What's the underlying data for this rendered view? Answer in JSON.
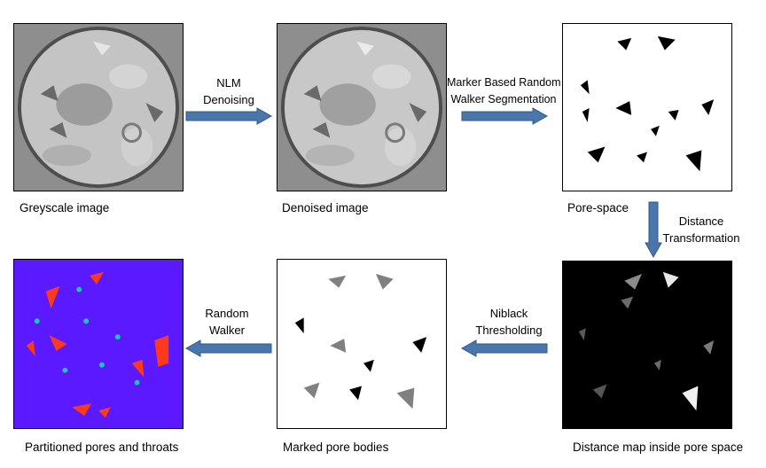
{
  "panels": {
    "greyscale": "Greyscale image",
    "denoised": "Denoised image",
    "pore_space": "Pore-space",
    "distance_map": "Distance map inside pore space",
    "marked": "Marked pore bodies",
    "partitioned": "Partitioned pores and throats"
  },
  "steps": {
    "nlm": [
      "NLM",
      "Denoising"
    ],
    "random_walker_seg": [
      "Marker Based Random",
      "Walker Segmentation"
    ],
    "distance": [
      "Distance",
      "Transformation"
    ],
    "niblack": [
      "Niblack",
      "Thresholding"
    ],
    "random_walker": [
      "Random",
      "Walker"
    ]
  },
  "colors": {
    "arrow": "#4a76ac",
    "partition_background": "#5a19ff",
    "pore": "#ff3a1a",
    "throat": "#18c8b0"
  }
}
